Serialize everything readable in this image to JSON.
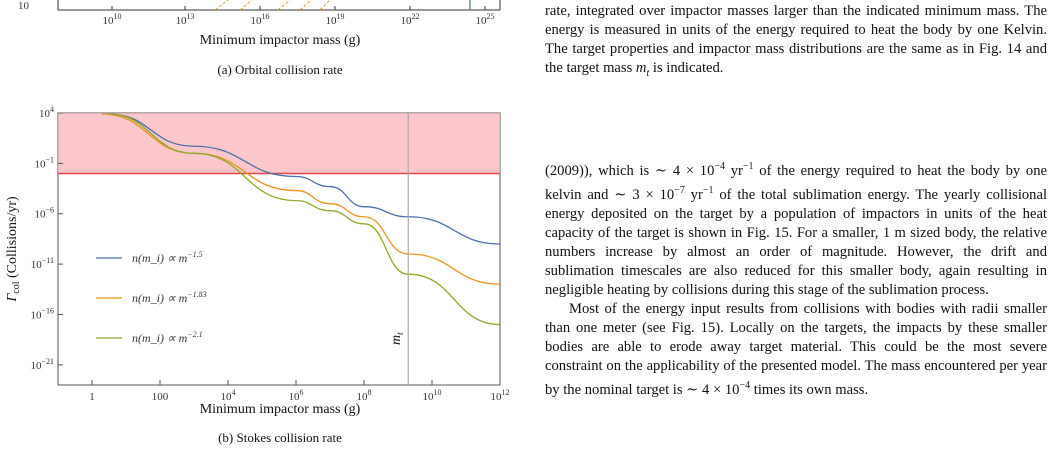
{
  "figure_top": {
    "top_ticks_x": [
      "10^10",
      "10^13",
      "10^16",
      "10^19",
      "10^22",
      "10^25"
    ],
    "top_tick_y": "10",
    "xlabel": "Minimum impactor mass (g)",
    "caption": "(a) Orbital collision rate"
  },
  "chart_data": {
    "type": "line",
    "title": "",
    "xlabel": "Minimum impactor mass (g)",
    "ylabel": "Γ_col (Collisions/yr)",
    "xscale": "log",
    "yscale": "log",
    "xlim": [
      0.1,
      1000000000000.0
    ],
    "ylim": [
      1e-23,
      10000.0
    ],
    "x_ticks": [
      "1",
      "100",
      "10^4",
      "10^6",
      "10^8",
      "10^10",
      "10^12"
    ],
    "y_ticks": [
      "10^4",
      "10^-1",
      "10^-6",
      "10^-11",
      "10^-16",
      "10^-21"
    ],
    "shaded_region": {
      "y_from": 0.01,
      "y_to": 10000.0,
      "color": "#fbb3b8",
      "line_color": "#e8464e"
    },
    "vertical_marker": {
      "x": 2000000000.0,
      "label": "m_t",
      "color": "#aaaaaa"
    },
    "legend_placement": "left",
    "series": [
      {
        "name": "n(m_i) ∝ m^−1.5",
        "color": "#4c6fa7",
        "x": [
          3,
          1000.0,
          1000000.0,
          10000000.0,
          100000000.0,
          2000000000.0,
          1000000000000.0
        ],
        "y": [
          8000,
          5,
          0.005,
          0.0005,
          5e-06,
          5e-07,
          1e-09
        ]
      },
      {
        "name": "n(m_i) ∝ m^−1.83",
        "color": "#e8951b",
        "x": [
          2,
          1000.0,
          1000000.0,
          10000000.0,
          100000000.0,
          2000000000.0,
          1000000000000.0
        ],
        "y": [
          8000,
          1,
          0.0002,
          1e-05,
          5e-07,
          1e-10,
          1e-13
        ]
      },
      {
        "name": "n(m_i) ∝ m^−2.1",
        "color": "#8fa92a",
        "x": [
          3,
          1000.0,
          1000000.0,
          10000000.0,
          100000000.0,
          2000000000.0,
          1000000000000.0
        ],
        "y": [
          8000,
          1,
          2e-05,
          2e-06,
          1e-07,
          1e-12,
          1e-17
        ]
      }
    ]
  },
  "figure_bottom": {
    "caption": "(b) Stokes collision rate"
  },
  "text": {
    "para1": "rate, integrated over impactor masses larger than the indicated minimum mass. The energy is measured in units of the energy required to heat the body by one Kelvin. The target properties and impactor mass distributions are the same as in Fig. 14 and the target mass m_t is indicated.",
    "para2": "(2009)), which is ∼ 4 × 10^−4 yr^−1 of the energy required to heat the body by one kelvin and ∼ 3 × 10^−7 yr^−1 of the total sublimation energy. The yearly collisional energy deposited on the target by a population of impactors in units of the heat capacity of the target is shown in Fig. 15. For a smaller, 1 m sized body, the relative numbers increase by almost an order of magnitude. However, the drift and sublimation timescales are also reduced for this smaller body, again resulting in negligible heating by collisions during this stage of the sublimation process.",
    "para3": "Most of the energy input results from collisions with bodies with radii smaller than one meter (see Fig. 15). Locally on the targets, the impacts by these smaller bodies are able to erode away target material. This could be the most severe constraint on the applicability of the presented model. The mass encountered per year by the nominal target is ∼ 4 × 10^−4 times its own mass."
  }
}
